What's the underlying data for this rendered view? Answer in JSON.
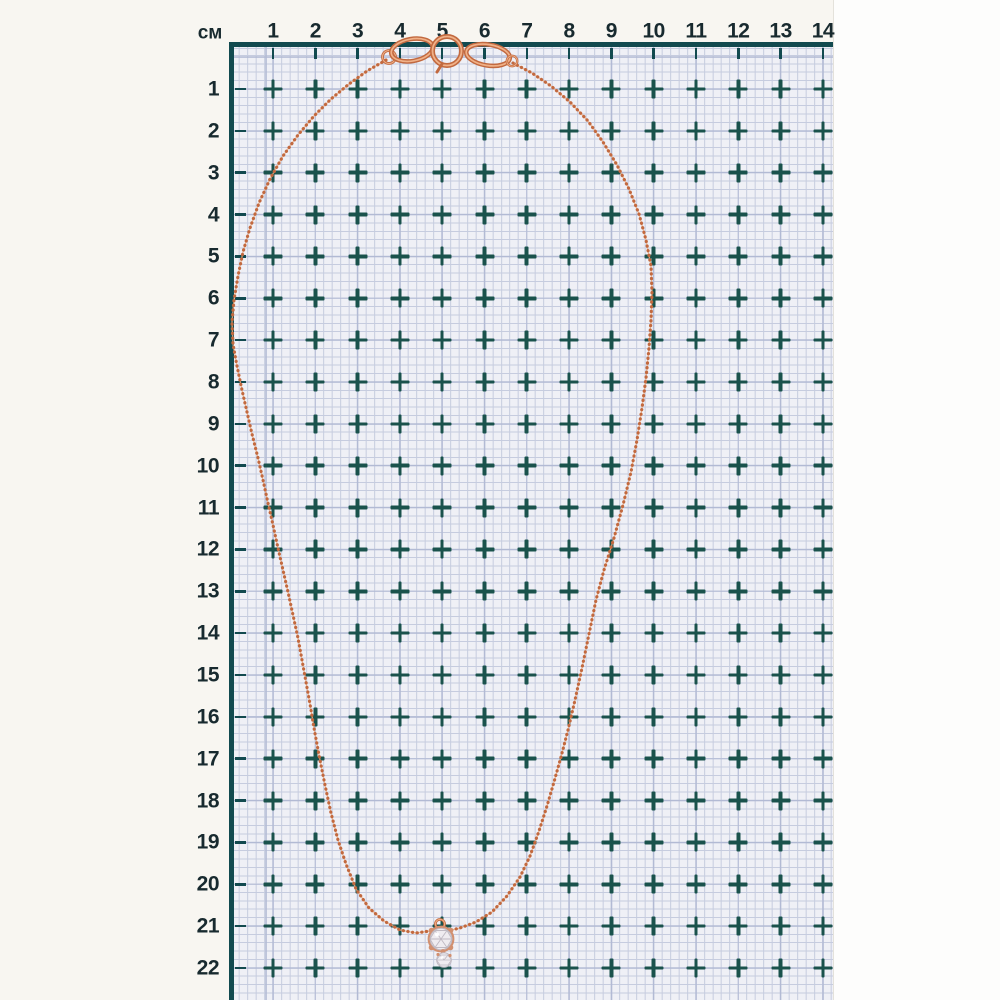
{
  "ruler": {
    "unit_label": "см",
    "top_labels": [
      "1",
      "2",
      "3",
      "4",
      "5",
      "6",
      "7",
      "8",
      "9",
      "10",
      "11",
      "12",
      "13",
      "14"
    ],
    "left_labels": [
      "1",
      "2",
      "3",
      "4",
      "5",
      "6",
      "7",
      "8",
      "9",
      "10",
      "11",
      "12",
      "13",
      "14",
      "15",
      "16",
      "17",
      "18",
      "19",
      "20",
      "21",
      "22"
    ]
  },
  "colors": {
    "margin_bg": "#f8f6f1",
    "right_bg": "#fdfdfc",
    "grid_bg": "#eff0f6",
    "grid_line": "#c6ccdf",
    "grid_line_major": "#b2bad4",
    "border_col": "#124a4f",
    "plus_col": "#1a524c",
    "label_col": "#182a2f",
    "chain_dark": "#c2693f",
    "chain_light": "#f0b188",
    "prong": "#d29070",
    "stone_fill": "#efecf0",
    "stone_line": "#bfb9c2"
  }
}
